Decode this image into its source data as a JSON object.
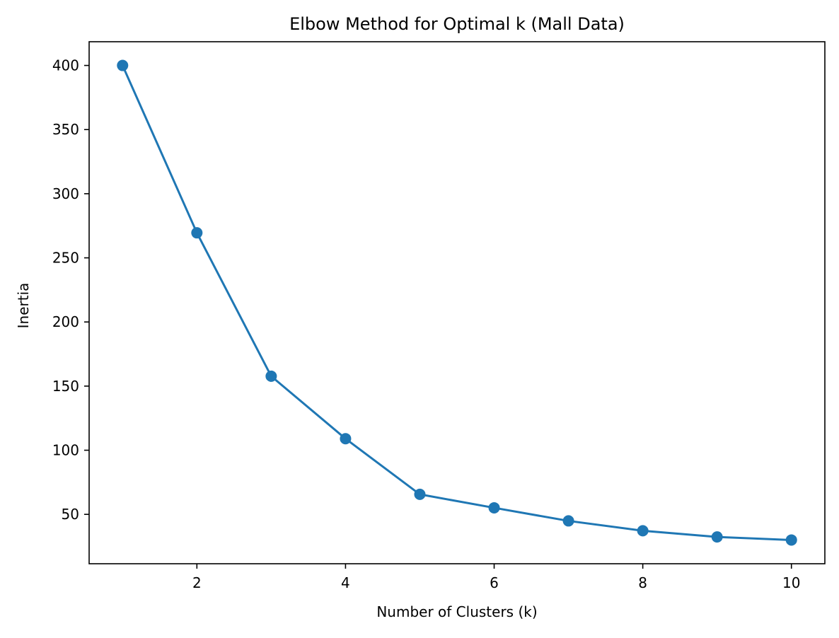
{
  "chart_data": {
    "type": "line",
    "title": "Elbow Method for Optimal k (Mall Data)",
    "xlabel": "Number of Clusters (k)",
    "ylabel": "Inertia",
    "x": [
      1,
      2,
      3,
      4,
      5,
      6,
      7,
      8,
      9,
      10
    ],
    "series": [
      {
        "values": [
          400,
          269.5,
          157.7,
          109,
          65.6,
          55.1,
          44.9,
          37.2,
          32.4,
          30
        ]
      }
    ],
    "xlim": [
      0.55,
      10.45
    ],
    "ylim": [
      11.5,
      418.5
    ],
    "xticks": [
      2,
      4,
      6,
      8,
      10
    ],
    "yticks": [
      50,
      100,
      150,
      200,
      250,
      300,
      350,
      400
    ],
    "marker": "circle",
    "grid": false,
    "colors": {
      "line": "#1f77b4",
      "axes": "#000000",
      "background": "#ffffff"
    }
  }
}
